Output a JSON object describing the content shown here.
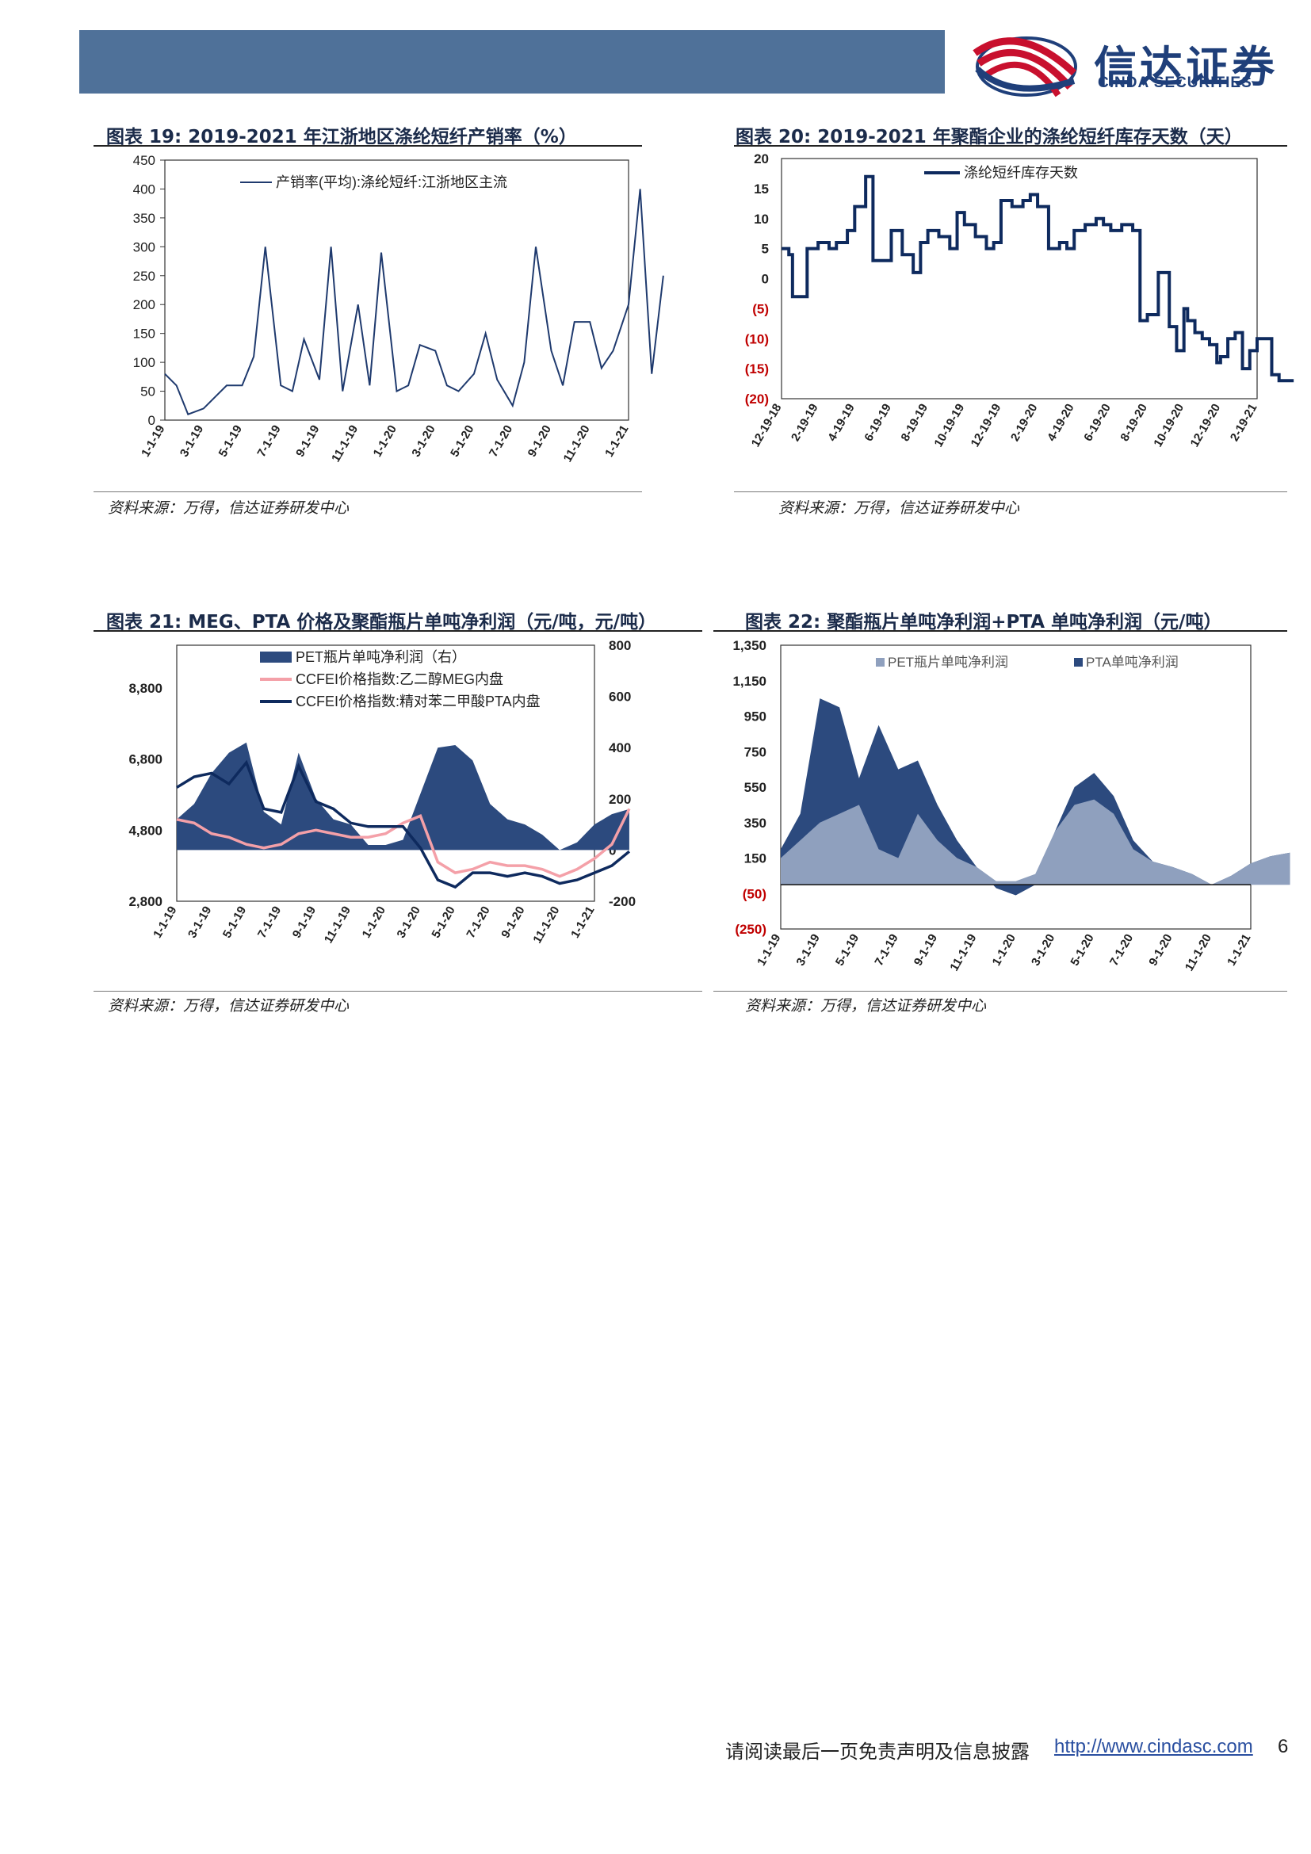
{
  "brand": {
    "name_cn": "信达证券",
    "name_en": "CINDA SECURITIES",
    "colors": {
      "navy": "#1f3f7a",
      "red": "#c8102e",
      "header": "#4f7199"
    }
  },
  "charts": [
    {
      "title": "图表 19:   2019-2021 年江浙地区涤纶短纤产销率（%）",
      "source": "资料来源：万得，信达证券研发中心"
    },
    {
      "title": "图表 20:   2019-2021 年聚酯企业的涤纶短纤库存天数（天）",
      "source": "资料来源：万得，信达证券研发中心"
    },
    {
      "title": "图表 21:  MEG、PTA 价格及聚酯瓶片单吨净利润（元/吨，元/吨）",
      "source": "资料来源：万得，信达证券研发中心"
    },
    {
      "title": "图表 22:  聚酯瓶片单吨净利润+PTA 单吨净利润（元/吨）",
      "source": "资料来源：万得，信达证券研发中心"
    }
  ],
  "chart_data": [
    {
      "type": "line",
      "y_ticks": [
        "450",
        "400",
        "350",
        "300",
        "250",
        "200",
        "150",
        "100",
        "50",
        "0"
      ],
      "ylim": [
        0,
        450
      ],
      "x_ticks": [
        "1-1-19",
        "3-1-19",
        "5-1-19",
        "7-1-19",
        "9-1-19",
        "11-1-19",
        "1-1-20",
        "3-1-20",
        "5-1-20",
        "7-1-20",
        "9-1-20",
        "11-1-20",
        "1-1-21"
      ],
      "series": [
        {
          "name": "产销率(平均):涤纶短纤:江浙地区主流",
          "color": "#1f3a6e",
          "x": [
            0,
            0.3,
            0.6,
            1,
            1.3,
            1.6,
            2,
            2.3,
            2.6,
            3,
            3.3,
            3.6,
            4,
            4.3,
            4.6,
            5,
            5.3,
            5.6,
            6,
            6.3,
            6.6,
            7,
            7.3,
            7.6,
            8,
            8.3,
            8.6,
            9,
            9.3,
            9.6,
            10,
            10.3,
            10.6,
            11,
            11.3,
            11.6,
            12,
            12.3,
            12.6,
            12.9
          ],
          "y": [
            80,
            60,
            10,
            20,
            40,
            60,
            60,
            110,
            300,
            60,
            50,
            140,
            70,
            300,
            50,
            200,
            60,
            290,
            50,
            60,
            130,
            120,
            60,
            50,
            80,
            150,
            70,
            25,
            100,
            300,
            120,
            60,
            170,
            170,
            90,
            120,
            200,
            400,
            80,
            250
          ]
        }
      ]
    },
    {
      "type": "line",
      "y_ticks": [
        "20",
        "15",
        "10",
        "5",
        "0",
        "(5)",
        "(10)",
        "(15)",
        "(20)"
      ],
      "ylim": [
        -20,
        20
      ],
      "x_ticks": [
        "12-19-18",
        "2-19-19",
        "4-19-19",
        "6-19-19",
        "8-19-19",
        "10-19-19",
        "12-19-19",
        "2-19-20",
        "4-19-20",
        "6-19-20",
        "8-19-20",
        "10-19-20",
        "12-19-20",
        "2-19-21"
      ],
      "series": [
        {
          "name": "涤纶短纤库存天数",
          "color": "#0e2a5e",
          "x": [
            0,
            0.2,
            0.3,
            0.6,
            0.7,
            1,
            1.3,
            1.5,
            1.8,
            2,
            2.3,
            2.5,
            2.7,
            3,
            3.3,
            3.6,
            3.8,
            4,
            4.3,
            4.6,
            4.8,
            5,
            5.3,
            5.6,
            5.8,
            6,
            6.3,
            6.6,
            6.8,
            7,
            7.3,
            7.6,
            7.8,
            8,
            8.3,
            8.6,
            8.8,
            9,
            9.3,
            9.6,
            9.8,
            10,
            10.3,
            10.6,
            10.8,
            11,
            11.1,
            11.3,
            11.5,
            11.7,
            11.9,
            12,
            12.2,
            12.4,
            12.6,
            12.8,
            13,
            13.2,
            13.4,
            13.6,
            13.8,
            14
          ],
          "y": [
            5,
            4,
            -3,
            -3,
            5,
            6,
            5,
            6,
            8,
            12,
            17,
            3,
            3,
            8,
            4,
            1,
            6,
            8,
            7,
            5,
            11,
            9,
            7,
            5,
            6,
            13,
            12,
            13,
            14,
            12,
            5,
            6,
            5,
            8,
            9,
            10,
            9,
            8,
            9,
            8,
            -7,
            -6,
            1,
            -8,
            -12,
            -5,
            -7,
            -9,
            -10,
            -11,
            -14,
            -13,
            -10,
            -9,
            -15,
            -12,
            -10,
            -10,
            -16,
            -17,
            -17,
            -17
          ]
        }
      ]
    },
    {
      "type": "area+line",
      "y_ticks_left": [
        "8,800",
        "6,800",
        "4,800",
        "2,800"
      ],
      "ylim_left": [
        2800,
        10000
      ],
      "y_ticks_right": [
        "800",
        "600",
        "400",
        "200",
        "0",
        "-200"
      ],
      "ylim_right": [
        -200,
        800
      ],
      "x_ticks": [
        "1-1-19",
        "3-1-19",
        "5-1-19",
        "7-1-19",
        "9-1-19",
        "11-1-19",
        "1-1-20",
        "3-1-20",
        "5-1-20",
        "7-1-20",
        "9-1-20",
        "11-1-20",
        "1-1-21"
      ],
      "series": [
        {
          "name": "PET瓶片单吨净利润（右）",
          "color": "#2c4a7e",
          "axis": "right",
          "x": [
            0,
            0.5,
            1,
            1.5,
            2,
            2.5,
            3,
            3.5,
            4,
            4.5,
            5,
            5.5,
            6,
            6.5,
            7,
            7.5,
            8,
            8.5,
            9,
            9.5,
            10,
            10.5,
            11,
            11.5,
            12,
            12.5,
            13
          ],
          "y": [
            120,
            180,
            300,
            380,
            420,
            150,
            100,
            380,
            200,
            120,
            100,
            20,
            20,
            40,
            220,
            400,
            410,
            350,
            180,
            120,
            100,
            60,
            0,
            30,
            100,
            140,
            160
          ]
        },
        {
          "name": "CCFEI价格指数:乙二醇MEG内盘",
          "color": "#f4a0a8",
          "axis": "left",
          "x": [
            0,
            0.5,
            1,
            1.5,
            2,
            2.5,
            3,
            3.5,
            4,
            4.5,
            5,
            5.5,
            6,
            6.5,
            7,
            7.5,
            8,
            8.5,
            9,
            9.5,
            10,
            10.5,
            11,
            11.5,
            12,
            12.5,
            13
          ],
          "y": [
            5100,
            5000,
            4700,
            4600,
            4400,
            4300,
            4400,
            4700,
            4800,
            4700,
            4600,
            4600,
            4700,
            5000,
            5200,
            3900,
            3600,
            3700,
            3900,
            3800,
            3800,
            3700,
            3500,
            3700,
            4000,
            4400,
            5400
          ]
        },
        {
          "name": "CCFEI价格指数:精对苯二甲酸PTA内盘",
          "color": "#0e2a5e",
          "axis": "left",
          "x": [
            0,
            0.5,
            1,
            1.5,
            2,
            2.5,
            3,
            3.5,
            4,
            4.5,
            5,
            5.5,
            6,
            6.5,
            7,
            7.5,
            8,
            8.5,
            9,
            9.5,
            10,
            10.5,
            11,
            11.5,
            12,
            12.5,
            13
          ],
          "y": [
            6000,
            6300,
            6400,
            6100,
            6700,
            5400,
            5300,
            6600,
            5600,
            5400,
            5000,
            4900,
            4900,
            4900,
            4300,
            3400,
            3200,
            3600,
            3600,
            3500,
            3600,
            3500,
            3300,
            3400,
            3600,
            3800,
            4200
          ]
        }
      ]
    },
    {
      "type": "stacked-area",
      "y_ticks": [
        "1,350",
        "1,150",
        "950",
        "750",
        "550",
        "350",
        "150",
        "(50)",
        "(250)"
      ],
      "ylim": [
        -250,
        1350
      ],
      "x_ticks": [
        "1-1-19",
        "3-1-19",
        "5-1-19",
        "7-1-19",
        "9-1-19",
        "11-1-19",
        "1-1-20",
        "3-1-20",
        "5-1-20",
        "7-1-20",
        "9-1-20",
        "11-1-20",
        "1-1-21"
      ],
      "series": [
        {
          "name": "PET瓶片单吨净利润",
          "color": "#8fa0be",
          "x": [
            0,
            0.5,
            1,
            1.5,
            2,
            2.5,
            3,
            3.5,
            4,
            4.5,
            5,
            5.5,
            6,
            6.5,
            7,
            7.5,
            8,
            8.5,
            9,
            9.5,
            10,
            10.5,
            11,
            11.5,
            12,
            12.5,
            13
          ],
          "y": [
            150,
            250,
            350,
            400,
            450,
            200,
            150,
            400,
            250,
            150,
            100,
            20,
            20,
            60,
            300,
            450,
            480,
            400,
            200,
            130,
            100,
            60,
            0,
            50,
            120,
            160,
            180
          ]
        },
        {
          "name": "PTA单吨净利润",
          "color": "#2c4a7e",
          "x": [
            0,
            0.5,
            1,
            1.5,
            2,
            2.5,
            3,
            3.5,
            4,
            4.5,
            5,
            5.5,
            6,
            6.5,
            7,
            7.5,
            8,
            8.5,
            9,
            9.5,
            10,
            10.5,
            11,
            11.5,
            12,
            12.5,
            13
          ],
          "y": [
            50,
            150,
            700,
            600,
            150,
            700,
            500,
            300,
            200,
            100,
            0,
            -40,
            -80,
            -60,
            0,
            100,
            150,
            100,
            50,
            0,
            0,
            0,
            0,
            0,
            0,
            0,
            0
          ]
        }
      ]
    }
  ],
  "footer": {
    "disclaimer": "请阅读最后一页免责声明及信息披露",
    "link": "http://www.cindasc.com",
    "page": "6"
  }
}
